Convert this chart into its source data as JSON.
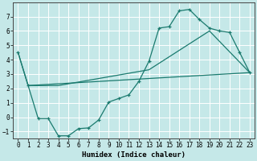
{
  "xlabel": "Humidex (Indice chaleur)",
  "xlim": [
    -0.5,
    23.5
  ],
  "ylim": [
    -1.5,
    8.0
  ],
  "yticks": [
    -1,
    0,
    1,
    2,
    3,
    4,
    5,
    6,
    7
  ],
  "xticks": [
    0,
    1,
    2,
    3,
    4,
    5,
    6,
    7,
    8,
    9,
    10,
    11,
    12,
    13,
    14,
    15,
    16,
    17,
    18,
    19,
    20,
    21,
    22,
    23
  ],
  "background_color": "#c5e8e8",
  "grid_color": "#ffffff",
  "line_color": "#1a7a6e",
  "line1_x": [
    0,
    1,
    2,
    3,
    4,
    5,
    6,
    7,
    8,
    9,
    10,
    11,
    12,
    13,
    14,
    15,
    16,
    17,
    18,
    19,
    20,
    21,
    22,
    23
  ],
  "line1_y": [
    4.5,
    2.2,
    -0.1,
    -0.1,
    -1.3,
    -1.3,
    -0.8,
    -0.75,
    -0.2,
    1.05,
    1.3,
    1.55,
    2.5,
    3.9,
    6.2,
    6.3,
    7.4,
    7.5,
    6.8,
    6.2,
    6.0,
    5.9,
    4.5,
    3.1
  ],
  "line2_x": [
    0,
    1,
    2,
    4,
    13,
    19,
    23
  ],
  "line2_y": [
    4.5,
    2.2,
    2.2,
    2.2,
    3.3,
    6.0,
    3.1
  ],
  "line3_x": [
    1,
    23
  ],
  "line3_y": [
    2.2,
    3.1
  ]
}
